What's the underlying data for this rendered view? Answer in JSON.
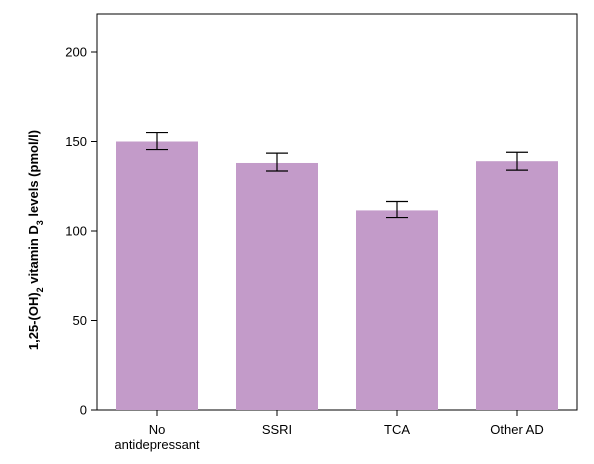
{
  "chart_data": {
    "type": "bar",
    "categories": [
      [
        "No",
        "antidepressant"
      ],
      [
        "SSRI"
      ],
      [
        "TCA"
      ],
      [
        "Other AD"
      ]
    ],
    "values": [
      150,
      138,
      111.5,
      139
    ],
    "error_low": [
      145.5,
      133.5,
      107.5,
      134
    ],
    "error_high": [
      155,
      143.5,
      116.5,
      144
    ],
    "ylabel": {
      "prefix": "1,25-(OH)",
      "sub1": "2",
      "middle": " vitamin D",
      "sub2": "3",
      "suffix": " levels (pmol/l)"
    },
    "ylim": [
      0,
      220
    ],
    "yticks": [
      "0",
      "50",
      "100",
      "150",
      "200"
    ],
    "bar_color": "#c39bc9",
    "error_color": "#000000",
    "grid": false
  }
}
